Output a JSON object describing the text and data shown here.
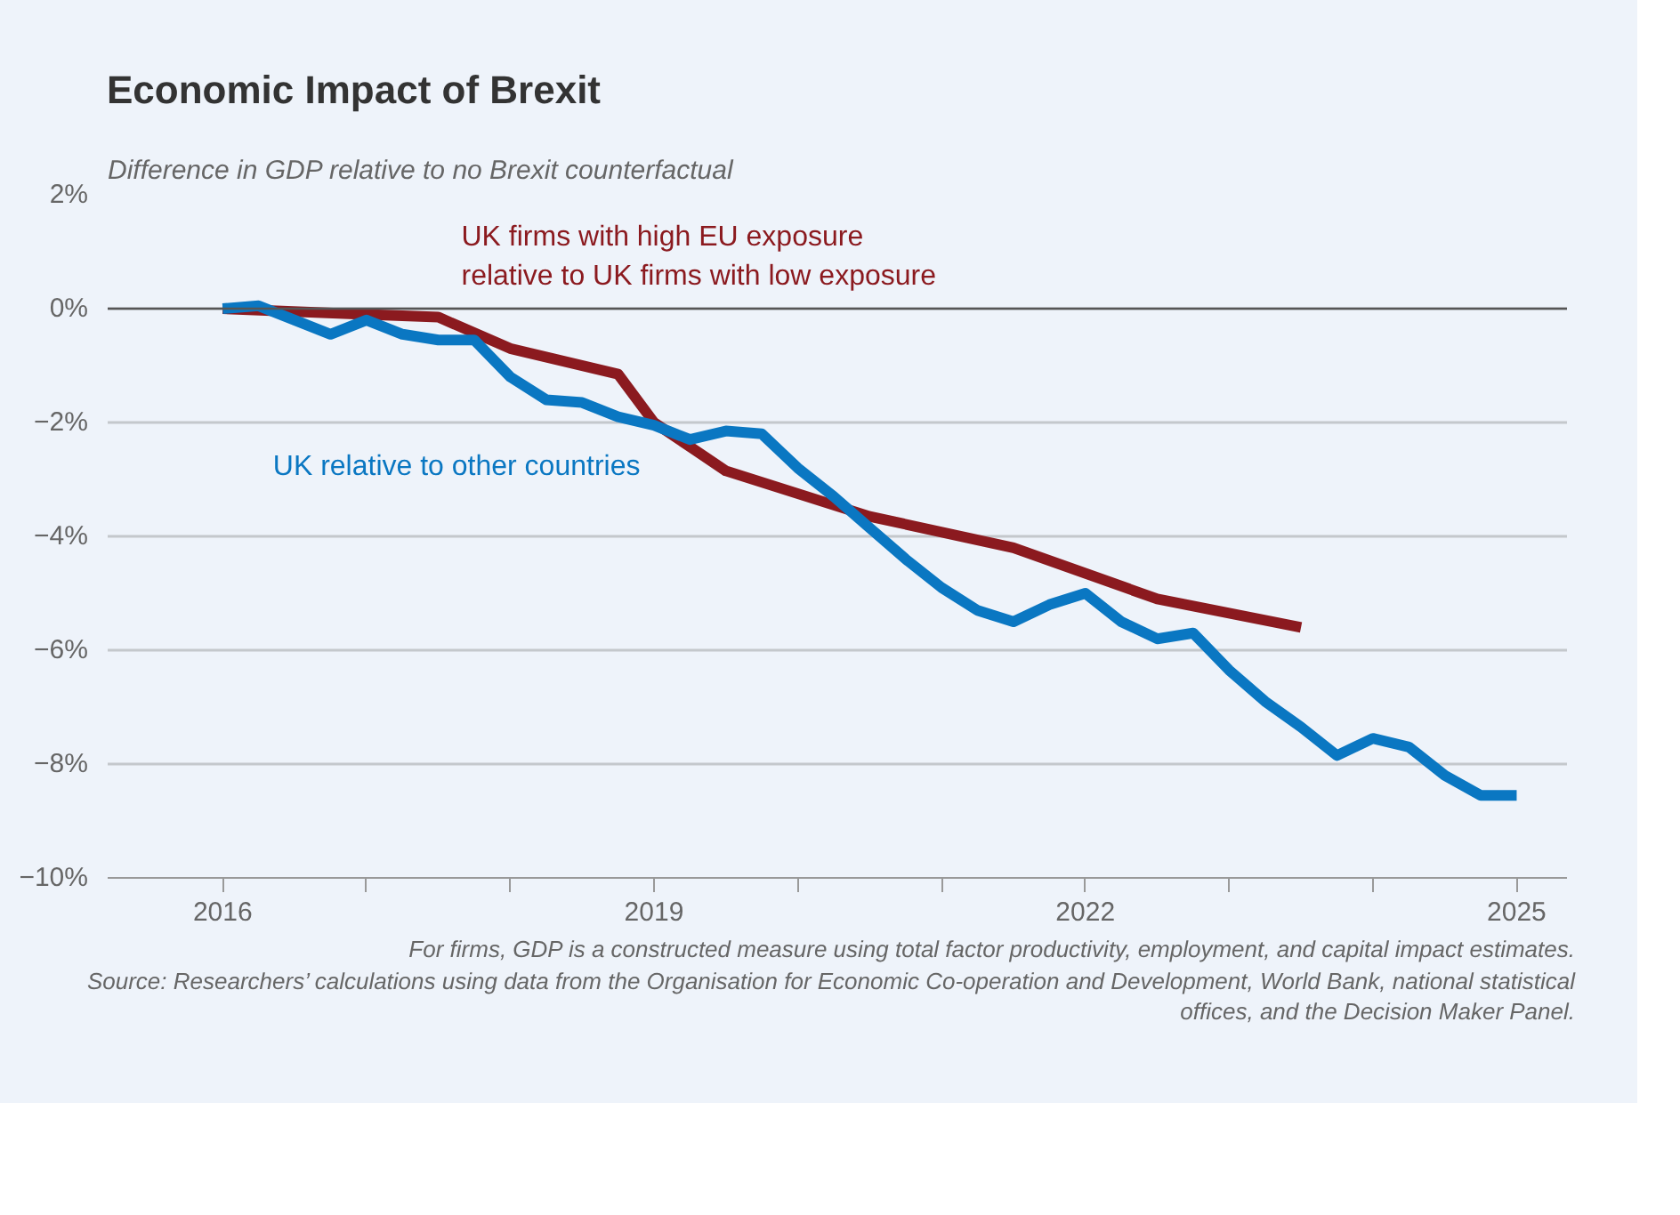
{
  "chart_data": {
    "type": "line",
    "title": "Economic Impact of Brexit",
    "ylabel": "Difference in GDP relative to no Brexit counterfactual",
    "series": [
      {
        "name": "UK firms with high EU exposure relative to UK firms with low exposure",
        "color": "#8b1a1f",
        "x": [
          2016.0,
          2017.0,
          2017.5,
          2018.0,
          2018.75,
          2019.0,
          2019.5,
          2020.5,
          2021.5,
          2022.5,
          2023.5
        ],
        "values": [
          0,
          -0.1,
          -0.15,
          -0.7,
          -1.15,
          -2.0,
          -2.85,
          -3.65,
          -4.2,
          -5.1,
          -5.6
        ]
      },
      {
        "name": "UK relative to other countries",
        "color": "#0a77c2",
        "x": [
          2016.0,
          2016.25,
          2016.5,
          2016.75,
          2017.0,
          2017.25,
          2017.5,
          2017.75,
          2018.0,
          2018.25,
          2018.5,
          2018.75,
          2019.0,
          2019.25,
          2019.5,
          2019.75,
          2020.0,
          2020.25,
          2020.5,
          2020.75,
          2021.0,
          2021.25,
          2021.5,
          2021.75,
          2022.0,
          2022.25,
          2022.5,
          2022.75,
          2023.0,
          2023.25,
          2023.5,
          2023.75,
          2024.0,
          2024.25,
          2024.5,
          2024.75,
          2025.0
        ],
        "values": [
          0,
          0.05,
          -0.2,
          -0.45,
          -0.2,
          -0.45,
          -0.55,
          -0.55,
          -1.2,
          -1.6,
          -1.65,
          -1.9,
          -2.05,
          -2.3,
          -2.15,
          -2.2,
          -2.8,
          -3.3,
          -3.85,
          -4.4,
          -4.9,
          -5.3,
          -5.5,
          -5.2,
          -5.0,
          -5.5,
          -5.8,
          -5.7,
          -6.35,
          -6.9,
          -7.35,
          -7.85,
          -7.55,
          -7.7,
          -8.2,
          -8.55,
          -8.55
        ]
      }
    ],
    "xlim": [
      2015.2,
      2025.35
    ],
    "ylim": [
      -10,
      2
    ],
    "xticks": [
      2016,
      {
        "value": 2017,
        "label": null
      },
      {
        "value": 2018,
        "label": null
      },
      2019,
      {
        "value": 2020,
        "label": null
      },
      {
        "value": 2021,
        "label": null
      },
      2022,
      {
        "value": 2023,
        "label": null
      },
      {
        "value": 2024,
        "label": null
      },
      2025
    ],
    "yticks": [
      {
        "value": 2,
        "label": "2%"
      },
      {
        "value": 0,
        "label": "0%"
      },
      {
        "value": -2,
        "label": "−2%"
      },
      {
        "value": -4,
        "label": "−4%"
      },
      {
        "value": -6,
        "label": "−6%"
      },
      {
        "value": -8,
        "label": "−8%"
      },
      {
        "value": -10,
        "label": "−10%"
      }
    ],
    "ref_lines": [
      {
        "axis": "y",
        "value": 0,
        "color": "#555555"
      }
    ],
    "grid": "y",
    "marker": "none",
    "line_style": "solid",
    "annotations": [
      "For firms, GDP is a constructed measure using total factor productivity, employment, and capital impact estimates.",
      "Source: Researchers’ calculations using data from the Organisation for Economic Co-operation and Development, World Bank, national statistical offices, and the Decision Maker Panel."
    ]
  }
}
